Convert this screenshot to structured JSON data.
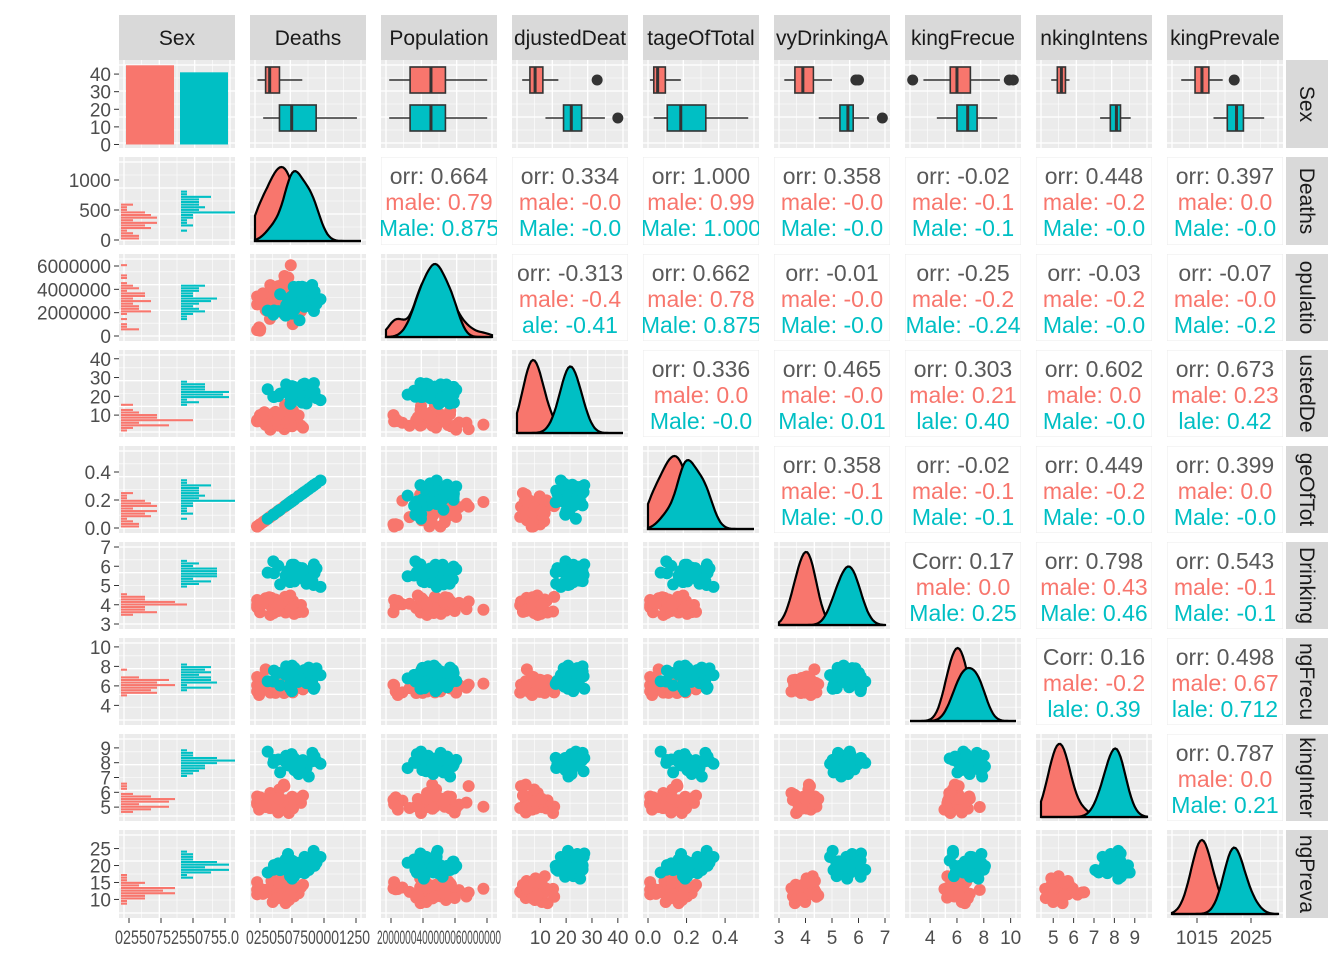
{
  "chart_data": {
    "type": "scatter-matrix",
    "variables": [
      "Sex",
      "Deaths",
      "Population",
      "AdjustedDeaths",
      "PercentageOfTotal",
      "HeavyDrinkingAdults",
      "DrinkingFrecuency",
      "DrinkingIntensity",
      "DrinkingPrevalence"
    ],
    "column_strip_labels": [
      "Sex",
      "Deaths",
      "Population",
      "djustedDeat",
      "tageOfTotal",
      "vyDrinkingA",
      "kingFrecue",
      "nkingIntens",
      "kingPrevale"
    ],
    "row_strip_labels": [
      "Sex",
      "Deaths",
      "opulatio",
      "ustedDe",
      "geOfTot",
      "Drinking",
      "ngFrecu",
      "kingInter",
      "ngPreva"
    ],
    "groups": [
      {
        "name": "Female",
        "color": "#F8766D"
      },
      {
        "name": "Male",
        "color": "#00BFC4"
      }
    ],
    "sex_counts": {
      "Female": 45,
      "Male": 41
    },
    "sex_axis": {
      "ticks": [
        0,
        10,
        20,
        30,
        40
      ],
      "ylim": [
        -2,
        48
      ]
    },
    "ranges": {
      "Deaths": [
        0,
        1300
      ],
      "Population": [
        0,
        6600000
      ],
      "AdjustedDeaths": [
        1,
        42
      ],
      "PercentageOfTotal": [
        0,
        0.55
      ],
      "HeavyDrinkingAdults": [
        3,
        7
      ],
      "DrinkingFrecuency": [
        2.5,
        10.4
      ],
      "DrinkingIntensity": [
        4.4,
        9.6
      ],
      "DrinkingPrevalence": [
        6,
        29
      ]
    },
    "y_ticks": {
      "Deaths": [
        "0",
        "500",
        "1000"
      ],
      "Population": [
        "0",
        "2000000",
        "4000000",
        "6000000"
      ],
      "AdjustedDeaths": [
        "10",
        "20",
        "30",
        "40"
      ],
      "PercentageOfTotal": [
        "0.0",
        "0.2",
        "0.4"
      ],
      "HeavyDrinkingAdults": [
        "3",
        "4",
        "5",
        "6",
        "7"
      ],
      "DrinkingFrecuency": [
        "4",
        "6",
        "8",
        "10"
      ],
      "DrinkingIntensity": [
        "5",
        "6",
        "7",
        "8",
        "9"
      ],
      "DrinkingPrevalence": [
        "10",
        "15",
        "20",
        "25"
      ]
    },
    "x_tick_labels": {
      "Sex": "02550752550755.0",
      "Deaths": "0250507500001250",
      "Population": "2000000400000060000000",
      "AdjustedDeaths": [
        "10",
        "20",
        "30",
        "40"
      ],
      "PercentageOfTotal": [
        "0.0",
        "0.2",
        "0.4"
      ],
      "HeavyDrinkingAdults": [
        "3",
        "4",
        "5",
        "6",
        "7"
      ],
      "DrinkingFrecuency": [
        "4",
        "6",
        "8",
        "10"
      ],
      "DrinkingIntensity": [
        "5",
        "6",
        "7",
        "8",
        "9"
      ],
      "DrinkingPrevalence": [
        "1015",
        "2025"
      ]
    },
    "group_means": {
      "Female": {
        "Deaths": 280,
        "Population": 2700000,
        "AdjustedDeaths": 8,
        "PercentageOfTotal": 0.08,
        "HeavyDrinkingAdults": 3.9,
        "DrinkingFrecuency": 6.0,
        "DrinkingIntensity": 5.4,
        "DrinkingPrevalence": 12.5
      },
      "Male": {
        "Deaths": 460,
        "Population": 2700000,
        "AdjustedDeaths": 22,
        "PercentageOfTotal": 0.2,
        "HeavyDrinkingAdults": 5.6,
        "DrinkingFrecuency": 6.9,
        "DrinkingIntensity": 8.1,
        "DrinkingPrevalence": 20
      }
    },
    "boxplots": {
      "Deaths": {
        "Female": [
          30,
          130,
          180,
          300,
          580
        ],
        "Male": [
          100,
          300,
          450,
          750,
          1250
        ]
      },
      "Population": {
        "Female": [
          200000,
          1500000,
          2800000,
          3700000,
          6300000
        ],
        "Male": [
          200000,
          1500000,
          2800000,
          3700000,
          6300000
        ]
      },
      "AdjustedDeaths": {
        "Female": [
          3,
          6,
          8,
          11,
          17
        ],
        "Male": [
          12,
          19,
          22,
          26,
          35
        ]
      },
      "PercentageOfTotal": {
        "Female": [
          0.01,
          0.03,
          0.05,
          0.09,
          0.17
        ],
        "Male": [
          0.03,
          0.1,
          0.17,
          0.3,
          0.52
        ]
      },
      "HeavyDrinkingAdults": {
        "Female": [
          3.2,
          3.6,
          3.9,
          4.3,
          5.0
        ],
        "Male": [
          4.5,
          5.3,
          5.6,
          5.8,
          6.4
        ]
      },
      "DrinkingFrecuency": {
        "Female": [
          3.5,
          5.5,
          6.0,
          7.0,
          9.2
        ],
        "Male": [
          4.5,
          6.0,
          6.8,
          7.5,
          9.0
        ]
      },
      "DrinkingIntensity": {
        "Female": [
          4.9,
          5.2,
          5.4,
          5.6,
          5.8
        ],
        "Male": [
          7.3,
          7.8,
          8.1,
          8.3,
          8.8
        ]
      },
      "DrinkingPrevalence": {
        "Female": [
          8,
          11,
          12.5,
          14,
          17
        ],
        "Male": [
          15,
          18,
          20,
          21.5,
          26
        ]
      }
    },
    "boxplot_outliers": {
      "AdjustedDeaths": {
        "Female": [
          32
        ],
        "Male": [
          40
        ]
      },
      "PercentageOfTotal": {
        "Female": [],
        "Male": []
      },
      "HeavyDrinkingAdults": {
        "Female": [
          5.9,
          6.0
        ],
        "Male": [
          6.9
        ]
      },
      "DrinkingFrecuency": {
        "Female": [
          2.7,
          9.9,
          10.2
        ],
        "Male": []
      },
      "DrinkingPrevalence": {
        "Female": [
          19.5
        ],
        "Male": []
      }
    },
    "correlation_panels": [
      {
        "row": "Deaths",
        "col": "Population",
        "lines": [
          "orr: 0.664",
          "male: 0.79",
          "Male: 0.875"
        ]
      },
      {
        "row": "Deaths",
        "col": "AdjustedDeaths",
        "lines": [
          "orr: 0.334",
          "male: -0.0",
          "Male: -0.0"
        ]
      },
      {
        "row": "Deaths",
        "col": "PercentageOfTotal",
        "lines": [
          "orr: 1.000",
          "male: 0.99",
          "Male: 1.000"
        ]
      },
      {
        "row": "Deaths",
        "col": "HeavyDrinkingAdults",
        "lines": [
          "orr: 0.358",
          "male: -0.0",
          "Male: -0.0"
        ]
      },
      {
        "row": "Deaths",
        "col": "DrinkingFrecuency",
        "lines": [
          "orr: -0.02",
          "male: -0.1",
          "Male: -0.1"
        ]
      },
      {
        "row": "Deaths",
        "col": "DrinkingIntensity",
        "lines": [
          "orr: 0.448",
          "male: -0.2",
          "Male: -0.0"
        ]
      },
      {
        "row": "Deaths",
        "col": "DrinkingPrevalence",
        "lines": [
          "orr: 0.397",
          "male: 0.0",
          "Male: -0.0"
        ]
      },
      {
        "row": "Population",
        "col": "AdjustedDeaths",
        "lines": [
          "orr: -0.313",
          "male: -0.4",
          "ale: -0.41"
        ]
      },
      {
        "row": "Population",
        "col": "PercentageOfTotal",
        "lines": [
          "orr: 0.662",
          "male: 0.78",
          "Male: 0.875"
        ]
      },
      {
        "row": "Population",
        "col": "HeavyDrinkingAdults",
        "lines": [
          "orr: -0.01",
          "male: -0.0",
          "Male: -0.0"
        ]
      },
      {
        "row": "Population",
        "col": "DrinkingFrecuency",
        "lines": [
          "orr: -0.25",
          "male: -0.2",
          "Male: -0.24"
        ]
      },
      {
        "row": "Population",
        "col": "DrinkingIntensity",
        "lines": [
          "orr: -0.03",
          "male: -0.2",
          "Male: -0.0"
        ]
      },
      {
        "row": "Population",
        "col": "DrinkingPrevalence",
        "lines": [
          "orr: -0.07",
          "male: -0.0",
          "Male: -0.2"
        ]
      },
      {
        "row": "AdjustedDeaths",
        "col": "PercentageOfTotal",
        "lines": [
          "orr: 0.336",
          "male: 0.0",
          "Male: -0.0"
        ]
      },
      {
        "row": "AdjustedDeaths",
        "col": "HeavyDrinkingAdults",
        "lines": [
          "orr: 0.465",
          "male: -0.0",
          "Male: 0.01"
        ]
      },
      {
        "row": "AdjustedDeaths",
        "col": "DrinkingFrecuency",
        "lines": [
          "orr: 0.303",
          "male: 0.21",
          "lale: 0.40"
        ]
      },
      {
        "row": "AdjustedDeaths",
        "col": "DrinkingIntensity",
        "lines": [
          "orr: 0.602",
          "male: 0.0",
          "Male: -0.0"
        ]
      },
      {
        "row": "AdjustedDeaths",
        "col": "DrinkingPrevalence",
        "lines": [
          "orr: 0.673",
          "male: 0.23",
          "lale: 0.42"
        ]
      },
      {
        "row": "PercentageOfTotal",
        "col": "HeavyDrinkingAdults",
        "lines": [
          "orr: 0.358",
          "male: -0.1",
          "Male: -0.0"
        ]
      },
      {
        "row": "PercentageOfTotal",
        "col": "DrinkingFrecuency",
        "lines": [
          "orr: -0.02",
          "male: -0.1",
          "Male: -0.1"
        ]
      },
      {
        "row": "PercentageOfTotal",
        "col": "DrinkingIntensity",
        "lines": [
          "orr: 0.449",
          "male: -0.2",
          "Male: -0.0"
        ]
      },
      {
        "row": "PercentageOfTotal",
        "col": "DrinkingPrevalence",
        "lines": [
          "orr: 0.399",
          "male: 0.0",
          "Male: -0.0"
        ]
      },
      {
        "row": "HeavyDrinkingAdults",
        "col": "DrinkingFrecuency",
        "lines": [
          "Corr: 0.17",
          "male: 0.0",
          "Male: 0.25"
        ]
      },
      {
        "row": "HeavyDrinkingAdults",
        "col": "DrinkingIntensity",
        "lines": [
          "orr: 0.798",
          "male: 0.43",
          "Male: 0.46"
        ]
      },
      {
        "row": "HeavyDrinkingAdults",
        "col": "DrinkingPrevalence",
        "lines": [
          "orr: 0.543",
          "male: -0.1",
          "Male: -0.1"
        ]
      },
      {
        "row": "DrinkingFrecuency",
        "col": "DrinkingIntensity",
        "lines": [
          "Corr: 0.16",
          "male: -0.2",
          "lale: 0.39"
        ]
      },
      {
        "row": "DrinkingFrecuency",
        "col": "DrinkingPrevalence",
        "lines": [
          "orr: 0.498",
          "male: 0.67",
          "lale: 0.712"
        ]
      },
      {
        "row": "DrinkingIntensity",
        "col": "DrinkingPrevalence",
        "lines": [
          "orr: 0.787",
          "male: 0.0",
          "Male: 0.21"
        ]
      }
    ]
  }
}
